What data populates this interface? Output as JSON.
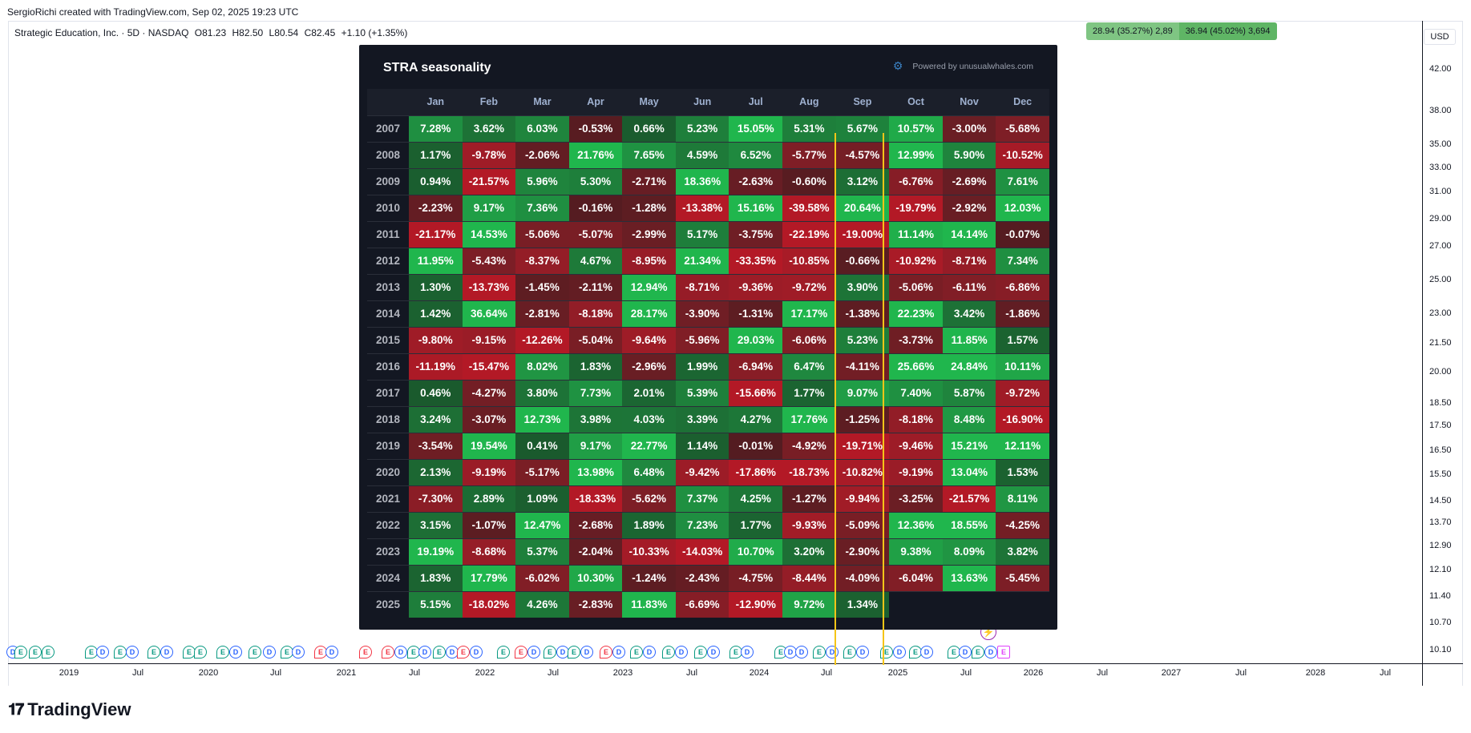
{
  "creator_note": "SergioRichi created with TradingView.com, Sep 02, 2025 19:23 UTC",
  "legend": {
    "symbol": "Strategic Education, Inc. · 5D · NASDAQ",
    "open": "O81.23",
    "high": "H82.50",
    "low": "L80.54",
    "close": "C82.45",
    "change": "+1.10 (+1.35%)"
  },
  "measure": {
    "a": "28.94 (35.27%) 2,89",
    "b": "36.94 (45.02%) 3,694"
  },
  "currency": "USD",
  "price_labels": [
    "42.00",
    "38.00",
    "35.00",
    "33.00",
    "31.00",
    "29.00",
    "27.00",
    "25.00",
    "23.00",
    "21.50",
    "20.00",
    "18.50",
    "17.50",
    "16.50",
    "15.50",
    "14.50",
    "13.70",
    "12.90",
    "12.10",
    "11.40",
    "10.70",
    "10.10"
  ],
  "time_labels": [
    "2019",
    "Jul",
    "2020",
    "Jul",
    "2021",
    "Jul",
    "2022",
    "Jul",
    "2023",
    "Jul",
    "2024",
    "Jul",
    "2025",
    "Jul",
    "2026",
    "Jul",
    "2027",
    "Jul",
    "2028",
    "Jul"
  ],
  "brand": "TradingView",
  "seasonality": {
    "title": "STRA seasonality",
    "credit": "Powered by unusualwhales.com",
    "months": [
      "Jan",
      "Feb",
      "Mar",
      "Apr",
      "May",
      "Jun",
      "Jul",
      "Aug",
      "Sep",
      "Oct",
      "Nov",
      "Dec"
    ],
    "rows": [
      {
        "year": "2007",
        "v": [
          7.28,
          3.62,
          6.03,
          -0.53,
          0.66,
          5.23,
          15.05,
          5.31,
          5.67,
          10.57,
          -3.0,
          -5.68
        ]
      },
      {
        "year": "2008",
        "v": [
          1.17,
          -9.78,
          -2.06,
          21.76,
          7.65,
          4.59,
          6.52,
          -5.77,
          -4.57,
          12.99,
          5.9,
          -10.52
        ]
      },
      {
        "year": "2009",
        "v": [
          0.94,
          -21.57,
          5.96,
          5.3,
          -2.71,
          18.36,
          -2.63,
          -0.6,
          3.12,
          -6.76,
          -2.69,
          7.61
        ]
      },
      {
        "year": "2010",
        "v": [
          -2.23,
          9.17,
          7.36,
          -0.16,
          -1.28,
          -13.38,
          15.16,
          -39.58,
          20.64,
          -19.79,
          -2.92,
          12.03
        ]
      },
      {
        "year": "2011",
        "v": [
          -21.17,
          14.53,
          -5.06,
          -5.07,
          -2.99,
          5.17,
          -3.75,
          -22.19,
          -19.0,
          11.14,
          14.14,
          -0.07
        ]
      },
      {
        "year": "2012",
        "v": [
          11.95,
          -5.43,
          -8.37,
          4.67,
          -8.95,
          21.34,
          -33.35,
          -10.85,
          -0.66,
          -10.92,
          -8.71,
          7.34
        ]
      },
      {
        "year": "2013",
        "v": [
          1.3,
          -13.73,
          -1.45,
          -2.11,
          12.94,
          -8.71,
          -9.36,
          -9.72,
          3.9,
          -5.06,
          -6.11,
          -6.86
        ]
      },
      {
        "year": "2014",
        "v": [
          1.42,
          36.64,
          -2.81,
          -8.18,
          28.17,
          -3.9,
          -1.31,
          17.17,
          -1.38,
          22.23,
          3.42,
          -1.86
        ]
      },
      {
        "year": "2015",
        "v": [
          -9.8,
          -9.15,
          -12.26,
          -5.04,
          -9.64,
          -5.96,
          29.03,
          -6.06,
          5.23,
          -3.73,
          11.85,
          1.57
        ]
      },
      {
        "year": "2016",
        "v": [
          -11.19,
          -15.47,
          8.02,
          1.83,
          -2.96,
          1.99,
          -6.94,
          6.47,
          -4.11,
          25.66,
          24.84,
          10.11
        ]
      },
      {
        "year": "2017",
        "v": [
          0.46,
          -4.27,
          3.8,
          7.73,
          2.01,
          5.39,
          -15.66,
          1.77,
          9.07,
          7.4,
          5.87,
          -9.72
        ]
      },
      {
        "year": "2018",
        "v": [
          3.24,
          -3.07,
          12.73,
          3.98,
          4.03,
          3.39,
          4.27,
          17.76,
          -1.25,
          -8.18,
          8.48,
          -16.9
        ]
      },
      {
        "year": "2019",
        "v": [
          -3.54,
          19.54,
          0.41,
          9.17,
          22.77,
          1.14,
          -0.01,
          -4.92,
          -19.71,
          -9.46,
          15.21,
          12.11
        ]
      },
      {
        "year": "2020",
        "v": [
          2.13,
          -9.19,
          -5.17,
          13.98,
          6.48,
          -9.42,
          -17.86,
          -18.73,
          -10.82,
          -9.19,
          13.04,
          1.53
        ]
      },
      {
        "year": "2021",
        "v": [
          -7.3,
          2.89,
          1.09,
          -18.33,
          -5.62,
          7.37,
          4.25,
          -1.27,
          -9.94,
          -3.25,
          -21.57,
          8.11
        ]
      },
      {
        "year": "2022",
        "v": [
          3.15,
          -1.07,
          12.47,
          -2.68,
          1.89,
          7.23,
          1.77,
          -9.93,
          -5.09,
          12.36,
          18.55,
          -4.25
        ]
      },
      {
        "year": "2023",
        "v": [
          19.19,
          -8.68,
          5.37,
          -2.04,
          -10.33,
          -14.03,
          10.7,
          3.2,
          -2.9,
          9.38,
          8.09,
          3.82
        ]
      },
      {
        "year": "2024",
        "v": [
          1.83,
          17.79,
          -6.02,
          10.3,
          -1.24,
          -2.43,
          -4.75,
          -8.44,
          -4.09,
          -6.04,
          13.63,
          -5.45
        ]
      },
      {
        "year": "2025",
        "v": [
          5.15,
          -18.02,
          4.26,
          -2.83,
          11.83,
          -6.69,
          -12.9,
          9.72,
          1.34,
          null,
          null,
          null
        ]
      }
    ]
  },
  "colors": {
    "positive": "#22c55e",
    "negative": "#dc2626",
    "highlight": "#f5c518"
  }
}
